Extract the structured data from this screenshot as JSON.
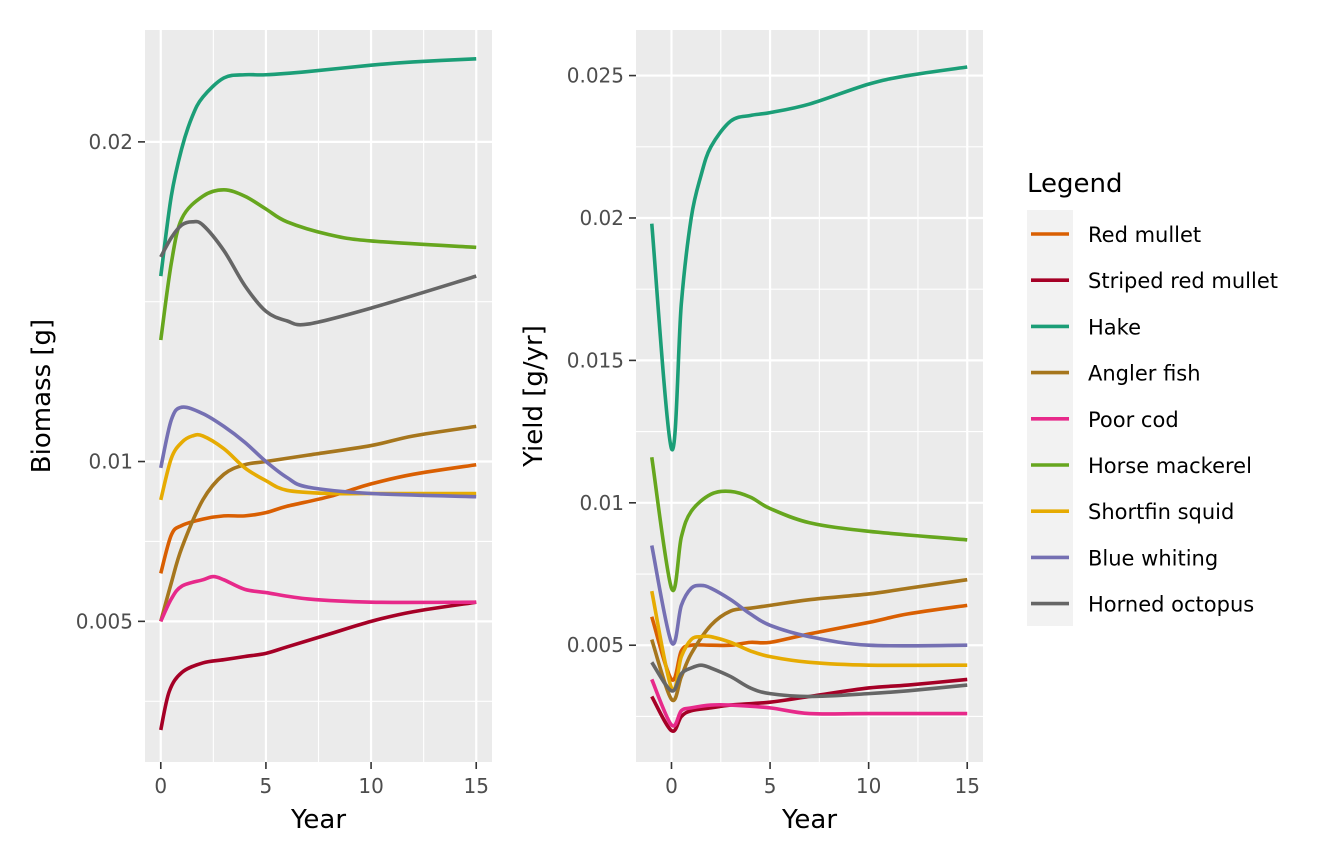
{
  "chart_data": [
    {
      "type": "line",
      "xlabel": "Year",
      "ylabel": "Biomass [g]",
      "xlim": [
        -0.75,
        15.75
      ],
      "ylim": [
        0.0006,
        0.0235
      ],
      "x_ticks": [
        0,
        5,
        10,
        15
      ],
      "x_tick_labels": [
        "0",
        "5",
        "10",
        "15"
      ],
      "y_ticks": [
        0.005,
        0.01,
        0.02
      ],
      "y_tick_labels": [
        "0.005",
        "0.01",
        "0.02"
      ],
      "y_minor_ticks": [
        0.0025,
        0.0075,
        0.015
      ],
      "grid": true,
      "series": [
        {
          "name": "Red mullet",
          "color": "#D95F02",
          "points": [
            [
              0,
              0.0065
            ],
            [
              0.5,
              0.0077
            ],
            [
              1,
              0.008
            ],
            [
              2,
              0.0082
            ],
            [
              3,
              0.0083
            ],
            [
              4,
              0.0083
            ],
            [
              5,
              0.0084
            ],
            [
              6,
              0.0086
            ],
            [
              8,
              0.0089
            ],
            [
              10,
              0.0093
            ],
            [
              12,
              0.0096
            ],
            [
              15,
              0.0099
            ]
          ]
        },
        {
          "name": "Striped red mullet",
          "color": "#A50026",
          "points": [
            [
              0,
              0.0016
            ],
            [
              0.4,
              0.0028
            ],
            [
              1,
              0.0034
            ],
            [
              2,
              0.0037
            ],
            [
              3,
              0.0038
            ],
            [
              4,
              0.0039
            ],
            [
              5,
              0.004
            ],
            [
              6,
              0.0042
            ],
            [
              8,
              0.0046
            ],
            [
              10,
              0.005
            ],
            [
              12,
              0.0053
            ],
            [
              15,
              0.0056
            ]
          ]
        },
        {
          "name": "Hake",
          "color": "#1B9E77",
          "points": [
            [
              0,
              0.0158
            ],
            [
              0.5,
              0.0183
            ],
            [
              1,
              0.0198
            ],
            [
              1.5,
              0.0208
            ],
            [
              2,
              0.0214
            ],
            [
              3,
              0.022
            ],
            [
              4,
              0.0221
            ],
            [
              5,
              0.0221
            ],
            [
              7,
              0.0222
            ],
            [
              10,
              0.0224
            ],
            [
              12,
              0.0225
            ],
            [
              15,
              0.0226
            ]
          ]
        },
        {
          "name": "Angler fish",
          "color": "#A6761D",
          "points": [
            [
              0,
              0.005
            ],
            [
              0.5,
              0.0062
            ],
            [
              1,
              0.0073
            ],
            [
              2,
              0.0088
            ],
            [
              3,
              0.0096
            ],
            [
              4,
              0.0099
            ],
            [
              5,
              0.01
            ],
            [
              7,
              0.0102
            ],
            [
              10,
              0.0105
            ],
            [
              12,
              0.0108
            ],
            [
              15,
              0.0111
            ]
          ]
        },
        {
          "name": "Poor cod",
          "color": "#E7298A",
          "points": [
            [
              0,
              0.005
            ],
            [
              0.5,
              0.0057
            ],
            [
              1,
              0.0061
            ],
            [
              2,
              0.0063
            ],
            [
              2.5,
              0.0064
            ],
            [
              3,
              0.0063
            ],
            [
              4,
              0.006
            ],
            [
              5,
              0.0059
            ],
            [
              7,
              0.0057
            ],
            [
              10,
              0.0056
            ],
            [
              15,
              0.0056
            ]
          ]
        },
        {
          "name": "Horse mackerel",
          "color": "#66A61E",
          "points": [
            [
              0,
              0.0138
            ],
            [
              0.5,
              0.0162
            ],
            [
              1,
              0.0176
            ],
            [
              2,
              0.0183
            ],
            [
              3,
              0.0185
            ],
            [
              4,
              0.0183
            ],
            [
              5,
              0.0179
            ],
            [
              6,
              0.0175
            ],
            [
              8,
              0.0171
            ],
            [
              10,
              0.0169
            ],
            [
              15,
              0.0167
            ]
          ]
        },
        {
          "name": "Shortfin squid",
          "color": "#E6AB02",
          "points": [
            [
              0,
              0.0088
            ],
            [
              0.5,
              0.0101
            ],
            [
              1,
              0.0106
            ],
            [
              1.5,
              0.0108
            ],
            [
              2,
              0.0108
            ],
            [
              3,
              0.0104
            ],
            [
              4,
              0.0098
            ],
            [
              5,
              0.0094
            ],
            [
              6,
              0.0091
            ],
            [
              8,
              0.009
            ],
            [
              10,
              0.009
            ],
            [
              15,
              0.009
            ]
          ]
        },
        {
          "name": "Blue whiting",
          "color": "#7570B3",
          "points": [
            [
              0,
              0.0098
            ],
            [
              0.5,
              0.0113
            ],
            [
              1,
              0.0117
            ],
            [
              2,
              0.0115
            ],
            [
              3,
              0.0111
            ],
            [
              4,
              0.0106
            ],
            [
              5,
              0.01
            ],
            [
              6,
              0.0095
            ],
            [
              7,
              0.0092
            ],
            [
              10,
              0.009
            ],
            [
              15,
              0.0089
            ]
          ]
        },
        {
          "name": "Horned octopus",
          "color": "#666666",
          "points": [
            [
              0,
              0.0164
            ],
            [
              0.5,
              0.017
            ],
            [
              1,
              0.0174
            ],
            [
              1.5,
              0.0175
            ],
            [
              2,
              0.0174
            ],
            [
              3,
              0.0166
            ],
            [
              4,
              0.0155
            ],
            [
              5,
              0.0147
            ],
            [
              6,
              0.0144
            ],
            [
              7,
              0.0143
            ],
            [
              10,
              0.0148
            ],
            [
              15,
              0.0158
            ]
          ]
        }
      ]
    },
    {
      "type": "line",
      "xlabel": "Year",
      "ylabel": "Yield [g/yr]",
      "xlim": [
        -1.8,
        15.8
      ],
      "ylim": [
        0.0009,
        0.0266
      ],
      "x_ticks": [
        0,
        5,
        10,
        15
      ],
      "x_tick_labels": [
        "0",
        "5",
        "10",
        "15"
      ],
      "y_ticks": [
        0.005,
        0.01,
        0.015,
        0.02,
        0.025
      ],
      "y_tick_labels": [
        "0.005",
        "0.01",
        "0.015",
        "0.02",
        "0.025"
      ],
      "y_minor_ticks": [
        0.0025,
        0.0075,
        0.0125,
        0.0175,
        0.0225
      ],
      "grid": true,
      "series": [
        {
          "name": "Red mullet",
          "color": "#D95F02",
          "points": [
            [
              -1,
              0.006
            ],
            [
              0,
              0.0038
            ],
            [
              0.5,
              0.0048
            ],
            [
              1,
              0.005
            ],
            [
              2,
              0.005
            ],
            [
              3,
              0.005
            ],
            [
              4,
              0.0051
            ],
            [
              5,
              0.0051
            ],
            [
              7,
              0.0054
            ],
            [
              10,
              0.0058
            ],
            [
              12,
              0.0061
            ],
            [
              15,
              0.0064
            ]
          ]
        },
        {
          "name": "Striped red mullet",
          "color": "#A50026",
          "points": [
            [
              -1,
              0.0032
            ],
            [
              0,
              0.002
            ],
            [
              0.5,
              0.0025
            ],
            [
              1,
              0.0027
            ],
            [
              2,
              0.0028
            ],
            [
              3,
              0.0029
            ],
            [
              5,
              0.003
            ],
            [
              7,
              0.0032
            ],
            [
              10,
              0.0035
            ],
            [
              12,
              0.0036
            ],
            [
              15,
              0.0038
            ]
          ]
        },
        {
          "name": "Hake",
          "color": "#1B9E77",
          "points": [
            [
              -1,
              0.0198
            ],
            [
              0,
              0.0119
            ],
            [
              0.5,
              0.017
            ],
            [
              1,
              0.02
            ],
            [
              1.5,
              0.0215
            ],
            [
              2,
              0.0225
            ],
            [
              3,
              0.0234
            ],
            [
              4,
              0.0236
            ],
            [
              5,
              0.0237
            ],
            [
              7,
              0.024
            ],
            [
              10,
              0.0247
            ],
            [
              12,
              0.025
            ],
            [
              15,
              0.0253
            ]
          ]
        },
        {
          "name": "Angler fish",
          "color": "#A6761D",
          "points": [
            [
              -1,
              0.0052
            ],
            [
              0,
              0.0031
            ],
            [
              0.5,
              0.0039
            ],
            [
              1,
              0.0047
            ],
            [
              2,
              0.0057
            ],
            [
              3,
              0.0062
            ],
            [
              4,
              0.0063
            ],
            [
              5,
              0.0064
            ],
            [
              7,
              0.0066
            ],
            [
              10,
              0.0068
            ],
            [
              12,
              0.007
            ],
            [
              15,
              0.0073
            ]
          ]
        },
        {
          "name": "Poor cod",
          "color": "#E7298A",
          "points": [
            [
              -1,
              0.0038
            ],
            [
              0,
              0.0022
            ],
            [
              0.5,
              0.0027
            ],
            [
              1,
              0.0028
            ],
            [
              2,
              0.0029
            ],
            [
              3,
              0.0029
            ],
            [
              5,
              0.0028
            ],
            [
              7,
              0.0026
            ],
            [
              10,
              0.0026
            ],
            [
              15,
              0.0026
            ]
          ]
        },
        {
          "name": "Horse mackerel",
          "color": "#66A61E",
          "points": [
            [
              -1,
              0.0116
            ],
            [
              0,
              0.007
            ],
            [
              0.5,
              0.0088
            ],
            [
              1,
              0.0097
            ],
            [
              2,
              0.0103
            ],
            [
              3,
              0.0104
            ],
            [
              4,
              0.0102
            ],
            [
              5,
              0.0098
            ],
            [
              7,
              0.0093
            ],
            [
              10,
              0.009
            ],
            [
              15,
              0.0087
            ]
          ]
        },
        {
          "name": "Shortfin squid",
          "color": "#E6AB02",
          "points": [
            [
              -1,
              0.0069
            ],
            [
              0,
              0.0035
            ],
            [
              0.5,
              0.0046
            ],
            [
              1,
              0.0052
            ],
            [
              1.5,
              0.0053
            ],
            [
              2,
              0.0053
            ],
            [
              3,
              0.0051
            ],
            [
              4,
              0.0048
            ],
            [
              5,
              0.0046
            ],
            [
              7,
              0.0044
            ],
            [
              10,
              0.0043
            ],
            [
              15,
              0.0043
            ]
          ]
        },
        {
          "name": "Blue whiting",
          "color": "#7570B3",
          "points": [
            [
              -1,
              0.0085
            ],
            [
              0,
              0.0051
            ],
            [
              0.5,
              0.0064
            ],
            [
              1,
              0.007
            ],
            [
              1.5,
              0.0071
            ],
            [
              2,
              0.007
            ],
            [
              3,
              0.0066
            ],
            [
              4,
              0.0061
            ],
            [
              5,
              0.0057
            ],
            [
              7,
              0.0053
            ],
            [
              10,
              0.005
            ],
            [
              15,
              0.005
            ]
          ]
        },
        {
          "name": "Horned octopus",
          "color": "#666666",
          "points": [
            [
              -1,
              0.0044
            ],
            [
              0,
              0.0034
            ],
            [
              0.5,
              0.004
            ],
            [
              1,
              0.0042
            ],
            [
              1.5,
              0.0043
            ],
            [
              2,
              0.0042
            ],
            [
              3,
              0.0039
            ],
            [
              4,
              0.0035
            ],
            [
              5,
              0.0033
            ],
            [
              7,
              0.0032
            ],
            [
              10,
              0.0033
            ],
            [
              12,
              0.0034
            ],
            [
              15,
              0.0036
            ]
          ]
        }
      ]
    }
  ],
  "legend": {
    "title": "Legend",
    "placement": "right",
    "items": [
      {
        "label": "Red mullet",
        "color": "#D95F02"
      },
      {
        "label": "Striped red mullet",
        "color": "#A50026"
      },
      {
        "label": "Hake",
        "color": "#1B9E77"
      },
      {
        "label": "Angler fish",
        "color": "#A6761D"
      },
      {
        "label": "Poor cod",
        "color": "#E7298A"
      },
      {
        "label": "Horse mackerel",
        "color": "#66A61E"
      },
      {
        "label": "Shortfin squid",
        "color": "#E6AB02"
      },
      {
        "label": "Blue whiting",
        "color": "#7570B3"
      },
      {
        "label": "Horned octopus",
        "color": "#666666"
      }
    ]
  }
}
